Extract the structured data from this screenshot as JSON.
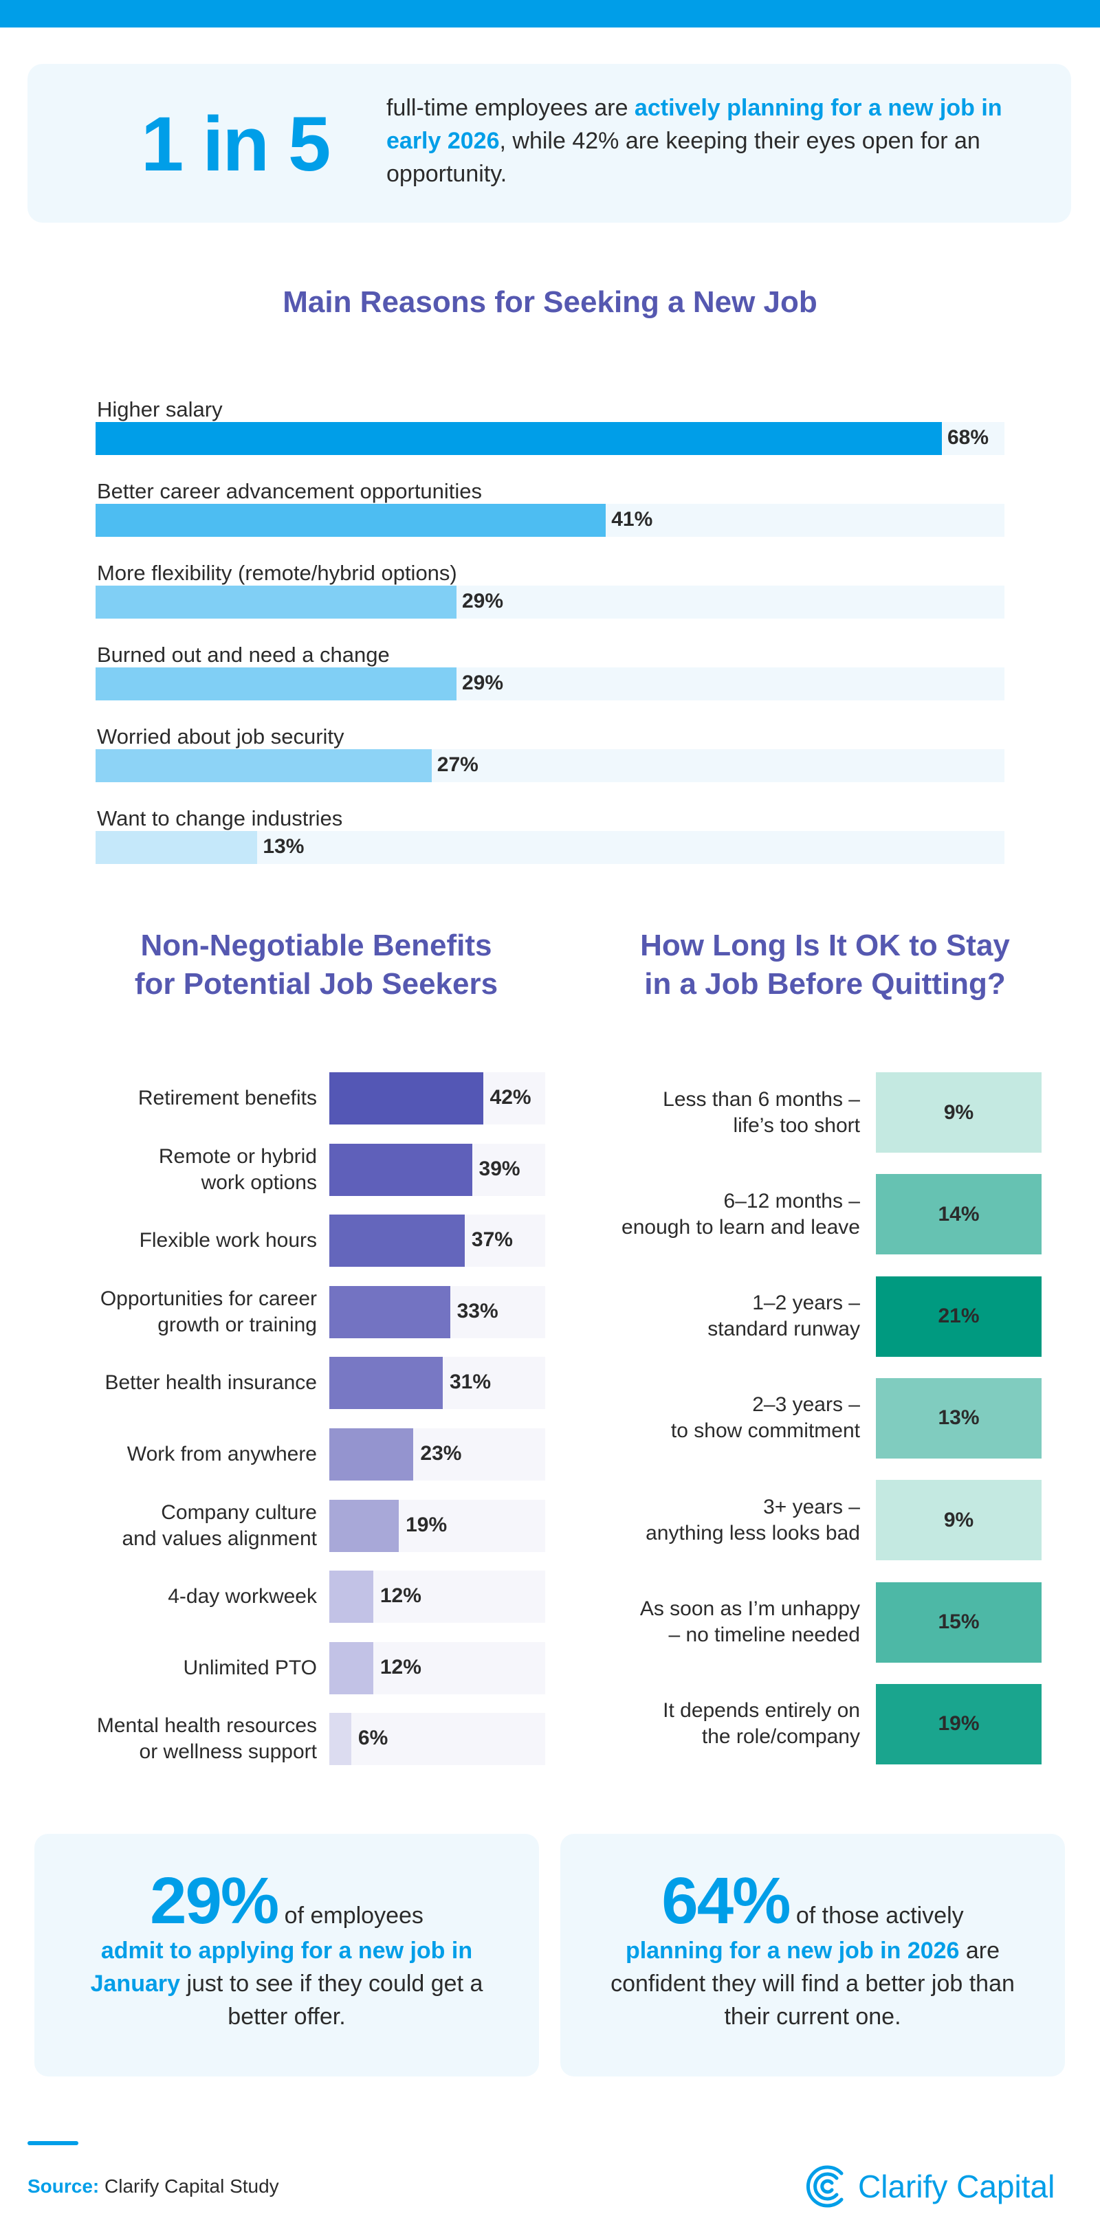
{
  "colors": {
    "accent": "#009ee8",
    "title": "#5558b0"
  },
  "hero": {
    "number": "1 in 5",
    "text_before": "full-time employees are ",
    "highlight": "actively planning for a new job in early 2026",
    "text_after": ", while 42% are keeping their eyes open for an opportunity."
  },
  "chart_data": [
    {
      "type": "bar",
      "orientation": "horizontal",
      "title": "Main Reasons for Seeking a New Job",
      "categories": [
        "Higher salary",
        "Better career advancement opportunities",
        "More flexibility (remote/hybrid options)",
        "Burned out and need a change",
        "Worried about job security",
        "Want to change industries"
      ],
      "values": [
        68,
        41,
        29,
        29,
        27,
        13
      ],
      "labels": [
        "68%",
        "41%",
        "29%",
        "29%",
        "27%",
        "13%"
      ],
      "colors": [
        "#009ee8",
        "#4dbdf2",
        "#80cff5",
        "#80cff5",
        "#8dd3f6",
        "#c5e8fa"
      ]
    },
    {
      "type": "bar",
      "orientation": "horizontal",
      "title": "Non-Negotiable Benefits for Potential Job Seekers",
      "categories": [
        "Retirement benefits",
        "Remote or hybrid work options",
        "Flexible work hours",
        "Opportunities for career growth or training",
        "Better health insurance",
        "Work from anywhere",
        "Company culture and values alignment",
        "4-day workweek",
        "Unlimited PTO",
        "Mental health resources or wellness support"
      ],
      "values": [
        42,
        39,
        37,
        33,
        31,
        23,
        19,
        12,
        12,
        6
      ],
      "labels": [
        "42%",
        "39%",
        "37%",
        "33%",
        "31%",
        "23%",
        "19%",
        "12%",
        "12%",
        "6%"
      ],
      "colors": [
        "#5457b5",
        "#5f60ba",
        "#6466bc",
        "#7373c2",
        "#7878c4",
        "#9494cf",
        "#a8a8d8",
        "#c2c2e6",
        "#c2c2e6",
        "#dcdcf0"
      ]
    },
    {
      "type": "heatmap",
      "title": "How Long Is It OK to Stay in a Job Before Quitting?",
      "categories": [
        "Less than 6 months – life’s too short",
        "6–12 months – enough to learn and leave",
        "1–2 years – standard runway",
        "2–3 years – to show commitment",
        "3+ years – anything less looks bad",
        "As soon as I’m unhappy – no timeline needed",
        "It depends entirely on the role/company"
      ],
      "values": [
        9,
        14,
        21,
        13,
        9,
        15,
        19
      ],
      "labels": [
        "9%",
        "14%",
        "21%",
        "13%",
        "9%",
        "15%",
        "19%"
      ],
      "colors": [
        "#c4e9e1",
        "#66c2b2",
        "#009a80",
        "#80ccbf",
        "#c4e9e1",
        "#4db8a6",
        "#1aa58e"
      ]
    }
  ],
  "titles": {
    "reasons": "Main Reasons for Seeking a New Job",
    "benefits_1": "Non-Negotiable Benefits",
    "benefits_2": "for Potential Job Seekers",
    "stay_1": "How Long Is It OK to Stay",
    "stay_2": "in a Job Before Quitting?"
  },
  "benefit_lines": [
    [
      "Retirement benefits"
    ],
    [
      "Remote or hybrid",
      "work options"
    ],
    [
      "Flexible work hours"
    ],
    [
      "Opportunities for career",
      "growth or training"
    ],
    [
      "Better health insurance"
    ],
    [
      "Work from anywhere"
    ],
    [
      "Company culture",
      "and values alignment"
    ],
    [
      "4-day workweek"
    ],
    [
      "Unlimited PTO"
    ],
    [
      "Mental health resources",
      "or wellness support"
    ]
  ],
  "stay_lines": [
    [
      "Less than 6 months –",
      "life’s too short"
    ],
    [
      "6–12 months –",
      "enough to learn and leave"
    ],
    [
      "1–2 years –",
      "standard runway"
    ],
    [
      "2–3 years –",
      "to show commitment"
    ],
    [
      "3+ years –",
      "anything less looks bad"
    ],
    [
      "As soon as I’m unhappy",
      "– no timeline needed"
    ],
    [
      "It depends entirely on",
      "the role/company"
    ]
  ],
  "cards": [
    {
      "big": "29%",
      "after_big": " of employees",
      "highlight": "admit to applying for a new job in January",
      "rest": " just to see if they could get a better offer."
    },
    {
      "big": "64%",
      "after_big": " of those actively",
      "highlight": "planning for a new job in 2026",
      "rest": " are confident they will find a better job than their current one."
    }
  ],
  "footer": {
    "source_label": "Source:",
    "source_text": " Clarify Capital Study",
    "logo_text": "Clarify Capital"
  }
}
